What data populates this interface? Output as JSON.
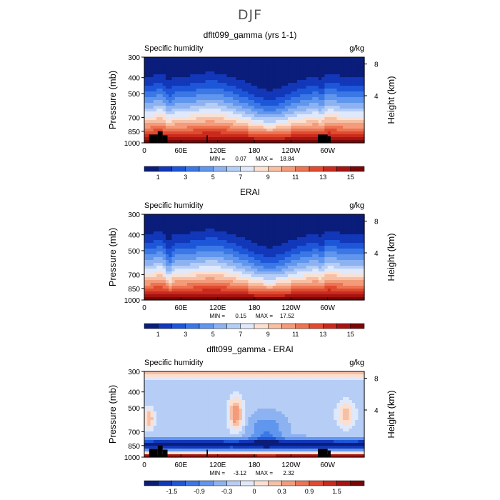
{
  "title": "DJF",
  "chart_data": [
    {
      "type": "heatmap",
      "title": "dflt099_gamma (yrs 1-1)",
      "field": "Specific humidity",
      "units": "g/kg",
      "ylabel": "Pressure (mb)",
      "ylabel_right": "Height (km)",
      "pressure_ticks": [
        300,
        400,
        500,
        700,
        850,
        1000
      ],
      "height_ticks": [
        8,
        4
      ],
      "lon_ticks": [
        "0",
        "60E",
        "120E",
        "180",
        "120W",
        "60W"
      ],
      "stats": {
        "min_label": "MIN =",
        "min": "0.07",
        "max_label": "MAX =",
        "max": "18.84"
      },
      "colorbar": {
        "colors": [
          "#0b1d7a",
          "#1237b8",
          "#1d56d8",
          "#3b78e6",
          "#6096ee",
          "#8db2f2",
          "#b6cdf6",
          "#dfe9fb",
          "#fbe0d2",
          "#f7bfa4",
          "#f39b7a",
          "#ec7452",
          "#e04a2f",
          "#c92a1d",
          "#a51410",
          "#7a0606"
        ],
        "labels": [
          "1",
          "3",
          "5",
          "7",
          "9",
          "11",
          "13",
          "15"
        ]
      },
      "mode": "humidity",
      "variant": "model"
    },
    {
      "type": "heatmap",
      "title": "ERAI",
      "field": "Specific humidity",
      "units": "g/kg",
      "ylabel": "Pressure (mb)",
      "ylabel_right": "Height (km)",
      "pressure_ticks": [
        300,
        400,
        500,
        700,
        850,
        1000
      ],
      "height_ticks": [
        8,
        4
      ],
      "lon_ticks": [
        "0",
        "60E",
        "120E",
        "180",
        "120W",
        "60W"
      ],
      "stats": {
        "min_label": "MIN =",
        "min": "0.15",
        "max_label": "MAX =",
        "max": "17.52"
      },
      "colorbar": {
        "colors": [
          "#0b1d7a",
          "#1237b8",
          "#1d56d8",
          "#3b78e6",
          "#6096ee",
          "#8db2f2",
          "#b6cdf6",
          "#dfe9fb",
          "#fbe0d2",
          "#f7bfa4",
          "#f39b7a",
          "#ec7452",
          "#e04a2f",
          "#c92a1d",
          "#a51410",
          "#7a0606"
        ],
        "labels": [
          "1",
          "3",
          "5",
          "7",
          "9",
          "11",
          "13",
          "15"
        ]
      },
      "mode": "humidity",
      "variant": "obs"
    },
    {
      "type": "heatmap",
      "title": "dflt099_gamma - ERAI",
      "field": "Specific humidity",
      "units": "g/kg",
      "ylabel": "Pressure (mb)",
      "ylabel_right": "Height (km)",
      "pressure_ticks": [
        300,
        400,
        500,
        700,
        850,
        1000
      ],
      "height_ticks": [
        8,
        4
      ],
      "lon_ticks": [
        "0",
        "60E",
        "120E",
        "180",
        "120W",
        "60W"
      ],
      "stats": {
        "min_label": "MIN =",
        "min": "-3.12",
        "max_label": "MAX =",
        "max": "2.32"
      },
      "colorbar": {
        "colors": [
          "#0b1d7a",
          "#1237b8",
          "#1d56d8",
          "#3b78e6",
          "#6096ee",
          "#8db2f2",
          "#b6cdf6",
          "#dfe9fb",
          "#fbe0d2",
          "#f7bfa4",
          "#f39b7a",
          "#ec7452",
          "#e04a2f",
          "#c92a1d",
          "#a51410",
          "#7a0606"
        ],
        "labels": [
          "-1.5",
          "-0.9",
          "-0.3",
          "0",
          "0.3",
          "0.9",
          "1.5"
        ]
      },
      "mode": "difference",
      "variant": "diff"
    }
  ]
}
